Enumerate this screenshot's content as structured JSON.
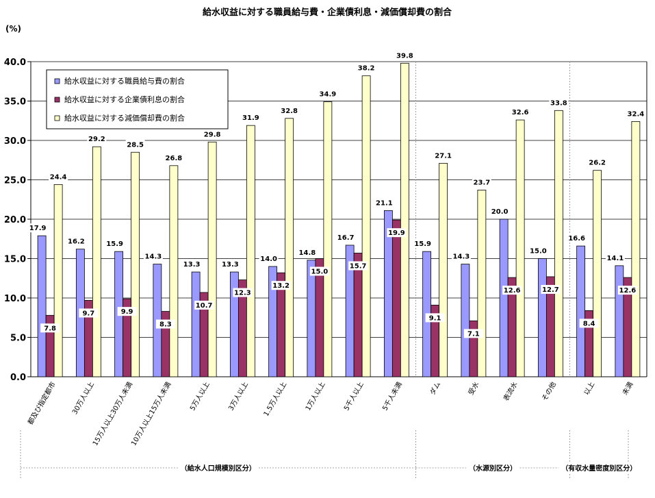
{
  "chart_data": {
    "type": "bar",
    "title": "給水収益に対する職員給与費・企業債利息・減価償却費の割合",
    "unit_label": "(%)",
    "ylim": [
      0,
      40
    ],
    "yticks": [
      "0.0",
      "5.0",
      "10.0",
      "15.0",
      "20.0",
      "25.0",
      "30.0",
      "35.0",
      "40.0"
    ],
    "grid": true,
    "legend_position": "top-left",
    "categories": [
      "都及び指定都市",
      "30万人以上",
      "15万人以上30万人未満",
      "10万人以上15万人未満",
      "5万人以上",
      "3万人以上",
      "1.5万人以上",
      "1万人以上",
      "5千人以上",
      "5千人未満",
      "ダム",
      "受水",
      "表流水",
      "その他",
      "以上",
      "未満"
    ],
    "series": [
      {
        "name": "給水収益に対する職員給与費の割合",
        "color": "#9999ff",
        "values": [
          17.9,
          16.2,
          15.9,
          14.3,
          13.3,
          13.3,
          14.0,
          14.8,
          16.7,
          21.1,
          15.9,
          14.3,
          20.0,
          15.0,
          16.6,
          14.1
        ]
      },
      {
        "name": "給水収益に対する企業債利息の割合",
        "color": "#993366",
        "values": [
          7.8,
          9.7,
          9.9,
          8.3,
          10.7,
          12.3,
          13.2,
          15.0,
          15.7,
          19.9,
          9.1,
          7.1,
          12.6,
          12.7,
          8.4,
          12.6
        ]
      },
      {
        "name": "給水収益に対する減価償却費の割合",
        "color": "#ffffcc",
        "values": [
          24.4,
          29.2,
          28.5,
          26.8,
          29.8,
          31.9,
          32.8,
          34.9,
          38.2,
          39.8,
          27.1,
          23.7,
          32.6,
          33.8,
          26.2,
          32.4
        ]
      }
    ],
    "data_labels": [
      [
        "17.9",
        "16.2",
        "15.9",
        "14.3",
        "13.3",
        "13.3",
        "14.0",
        "14.8",
        "16.7",
        "21.1",
        "15.9",
        "14.3",
        "20.0",
        "15.0",
        "16.6",
        "14.1"
      ],
      [
        "7.8",
        "9.7",
        "9.9",
        "8.3",
        "10.7",
        "12.3",
        "13.2",
        "15.0",
        "15.7",
        "19.9",
        "9.1",
        "7.1",
        "12.6",
        "12.7",
        "8.4",
        "12.6"
      ],
      [
        "24.4",
        "29.2",
        "28.5",
        "26.8",
        "29.8",
        "31.9",
        "32.8",
        "34.9",
        "38.2",
        "39.8",
        "27.1",
        "23.7",
        "32.6",
        "33.8",
        "26.2",
        "32.4"
      ]
    ],
    "groups": [
      {
        "label": "（給水人口規模別区分）",
        "start": 0,
        "end": 9
      },
      {
        "label": "（水源別区分）",
        "start": 10,
        "end": 13
      },
      {
        "label": "（有収水量密度別区分）",
        "start": 14,
        "end": 15
      }
    ]
  }
}
